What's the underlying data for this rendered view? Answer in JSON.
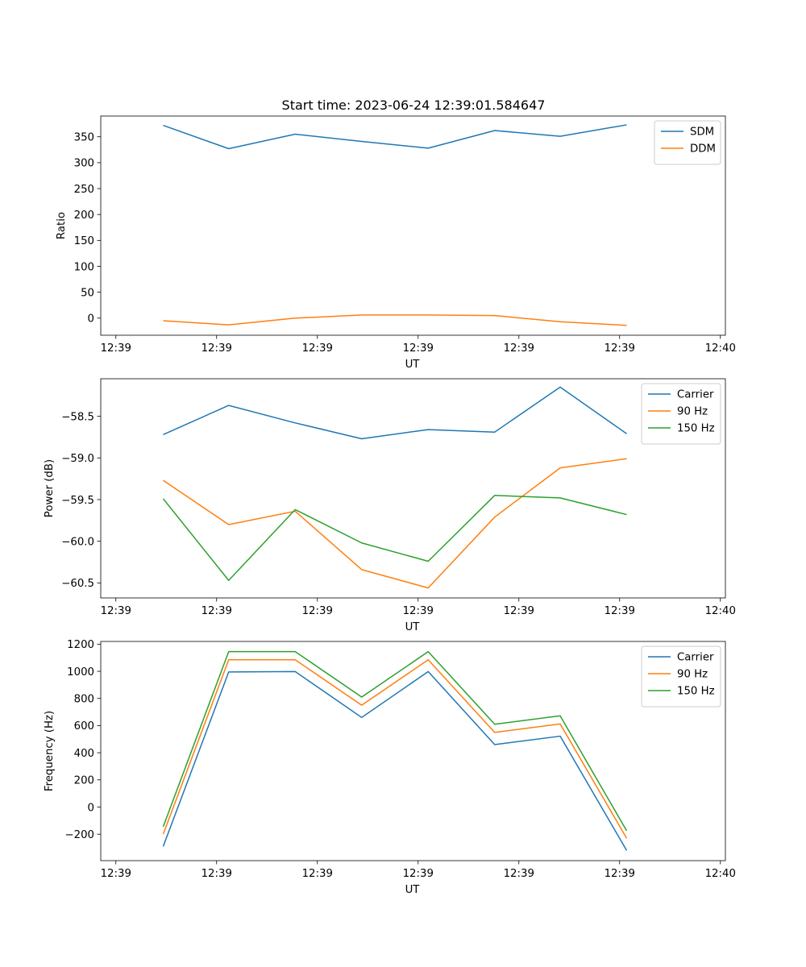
{
  "figure": {
    "title": "Start time: 2023-06-24 12:39:01.584647"
  },
  "chart_data": [
    {
      "type": "line",
      "title": "Start time: 2023-06-24 12:39:01.584647",
      "xlabel": "UT",
      "ylabel": "Ratio",
      "x_tick_labels": [
        "12:39",
        "12:39",
        "12:39",
        "12:39",
        "12:39",
        "12:39",
        "12:40"
      ],
      "xlim": [
        -0.15,
        6.05
      ],
      "x_tick_positions": [
        0,
        1,
        2,
        3,
        4,
        5,
        6
      ],
      "ylim": [
        -33,
        390
      ],
      "y_ticks": [
        0,
        50,
        100,
        150,
        200,
        250,
        300,
        350
      ],
      "y_tick_labels": [
        "0",
        "50",
        "100",
        "150",
        "200",
        "250",
        "300",
        "350"
      ],
      "legend_position": "upper-right",
      "grid": false,
      "x": [
        0.47,
        1.12,
        1.78,
        2.44,
        3.1,
        3.76,
        4.41,
        5.07
      ],
      "series": [
        {
          "name": "SDM",
          "color": "#1f77b4",
          "values": [
            372,
            327,
            355,
            341,
            328,
            362,
            351,
            373
          ]
        },
        {
          "name": "DDM",
          "color": "#ff7f0e",
          "values": [
            -5,
            -13,
            0,
            6,
            6,
            5,
            -7,
            -14
          ]
        }
      ]
    },
    {
      "type": "line",
      "xlabel": "UT",
      "ylabel": "Power (dB)",
      "x_tick_labels": [
        "12:39",
        "12:39",
        "12:39",
        "12:39",
        "12:39",
        "12:39",
        "12:40"
      ],
      "xlim": [
        -0.15,
        6.05
      ],
      "x_tick_positions": [
        0,
        1,
        2,
        3,
        4,
        5,
        6
      ],
      "ylim": [
        -60.68,
        -58.05
      ],
      "y_ticks": [
        -60.5,
        -60.0,
        -59.5,
        -59.0,
        -58.5
      ],
      "y_tick_labels": [
        "−60.5",
        "−60.0",
        "−59.5",
        "−59.0",
        "−58.5"
      ],
      "legend_position": "upper-right",
      "grid": false,
      "x": [
        0.47,
        1.12,
        1.78,
        2.44,
        3.1,
        3.76,
        4.41,
        5.07
      ],
      "series": [
        {
          "name": "Carrier",
          "color": "#1f77b4",
          "values": [
            -58.72,
            -58.37,
            -58.58,
            -58.77,
            -58.66,
            -58.69,
            -58.15,
            -58.71
          ]
        },
        {
          "name": "90 Hz",
          "color": "#ff7f0e",
          "values": [
            -59.27,
            -59.8,
            -59.64,
            -60.34,
            -60.56,
            -59.71,
            -59.12,
            -59.01
          ]
        },
        {
          "name": "150 Hz",
          "color": "#2ca02c",
          "values": [
            -59.49,
            -60.47,
            -59.62,
            -60.02,
            -60.24,
            -59.45,
            -59.48,
            -59.68
          ]
        }
      ]
    },
    {
      "type": "line",
      "xlabel": "UT",
      "ylabel": "Frequency (Hz)",
      "x_tick_labels": [
        "12:39",
        "12:39",
        "12:39",
        "12:39",
        "12:39",
        "12:39",
        "12:40"
      ],
      "xlim": [
        -0.15,
        6.05
      ],
      "x_tick_positions": [
        0,
        1,
        2,
        3,
        4,
        5,
        6
      ],
      "ylim": [
        -395,
        1220
      ],
      "y_ticks": [
        -200,
        0,
        200,
        400,
        600,
        800,
        1000,
        1200
      ],
      "y_tick_labels": [
        "−200",
        "0",
        "200",
        "400",
        "600",
        "800",
        "1000",
        "1200"
      ],
      "legend_position": "upper-right",
      "grid": false,
      "x": [
        0.47,
        1.12,
        1.78,
        2.44,
        3.1,
        3.76,
        4.41,
        5.07
      ],
      "series": [
        {
          "name": "Carrier",
          "color": "#1f77b4",
          "values": [
            -290,
            995,
            998,
            660,
            998,
            460,
            522,
            -320
          ]
        },
        {
          "name": "90 Hz",
          "color": "#ff7f0e",
          "values": [
            -200,
            1085,
            1085,
            750,
            1085,
            550,
            612,
            -230
          ]
        },
        {
          "name": "150 Hz",
          "color": "#2ca02c",
          "values": [
            -145,
            1145,
            1145,
            810,
            1145,
            610,
            672,
            -175
          ]
        }
      ]
    }
  ]
}
